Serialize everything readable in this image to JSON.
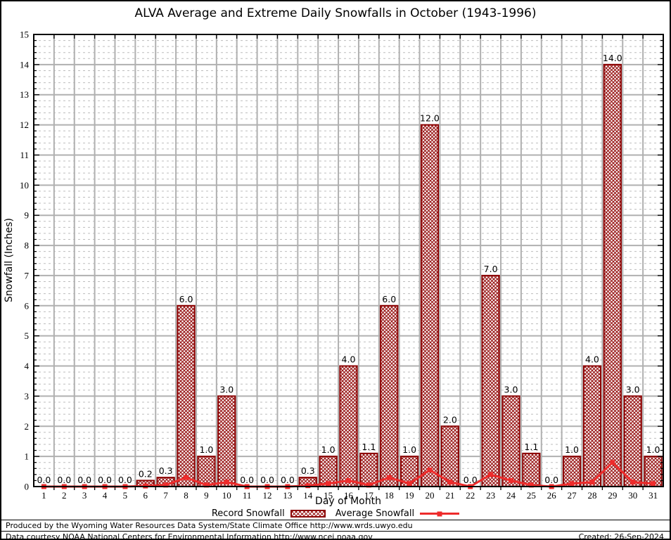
{
  "title": "ALVA Average and Extreme Daily Snowfalls in October (1943-1996)",
  "chart_data": {
    "type": "bar",
    "title": "ALVA Average and Extreme Daily Snowfalls in October (1943-1996)",
    "xlabel": "Day of Month",
    "ylabel": "Snowfall (Inches)",
    "ylim": [
      0,
      15
    ],
    "y_major_step": 1,
    "y_minor_step": 0.2,
    "grid": true,
    "legend_position": "bottom",
    "categories": [
      1,
      2,
      3,
      4,
      5,
      6,
      7,
      8,
      9,
      10,
      11,
      12,
      13,
      14,
      15,
      16,
      17,
      18,
      19,
      20,
      21,
      22,
      23,
      24,
      25,
      26,
      27,
      28,
      29,
      30,
      31
    ],
    "series": [
      {
        "name": "Record Snowfall",
        "type": "bar",
        "values": [
          0.0,
          0.0,
          0.0,
          0.0,
          0.0,
          0.2,
          0.3,
          6.0,
          1.0,
          3.0,
          0.0,
          0.0,
          0.0,
          0.3,
          1.0,
          4.0,
          1.1,
          6.0,
          1.0,
          12.0,
          2.0,
          0.0,
          7.0,
          3.0,
          1.1,
          0.0,
          1.0,
          4.0,
          14.0,
          3.0,
          1.0
        ],
        "labels": [
          "0.0",
          "0.0",
          "0.0",
          "0.0",
          "0.0",
          "0.2",
          "0.3",
          "6.0",
          "1.0",
          "3.0",
          "0.0",
          "0.0",
          "0.0",
          "0.3",
          "1.0",
          "4.0",
          "1.1",
          "6.0",
          "1.0",
          "12.0",
          "2.0",
          "0.0",
          "7.0",
          "3.0",
          "1.1",
          "0.0",
          "1.0",
          "4.0",
          "14.0",
          "3.0",
          "1.0"
        ]
      },
      {
        "name": "Average Snowfall",
        "type": "line",
        "values": [
          0.0,
          0.0,
          0.0,
          0.0,
          0.0,
          0.02,
          0.05,
          0.3,
          0.05,
          0.15,
          0.0,
          0.0,
          0.0,
          0.03,
          0.1,
          0.2,
          0.05,
          0.3,
          0.1,
          0.55,
          0.15,
          0.0,
          0.4,
          0.2,
          0.05,
          0.0,
          0.1,
          0.15,
          0.8,
          0.15,
          0.1
        ]
      }
    ]
  },
  "colors": {
    "bar_border": "#8B0000",
    "bar_hatch": "#9A1A1A",
    "avg_line": "#EE2B2B",
    "grid_major": "#b0b0b0",
    "grid_minor": "#bdbdbd",
    "axis": "#000000"
  },
  "footer": {
    "line1": "Produced by the Wyoming Water Resources Data System/State Climate Office http://www.wrds.uwyo.edu",
    "line2": "Data courtesy NOAA National Centers for Environmental Information http://www.ncei.noaa.gov",
    "created": "Created: 26-Sep-2024"
  }
}
